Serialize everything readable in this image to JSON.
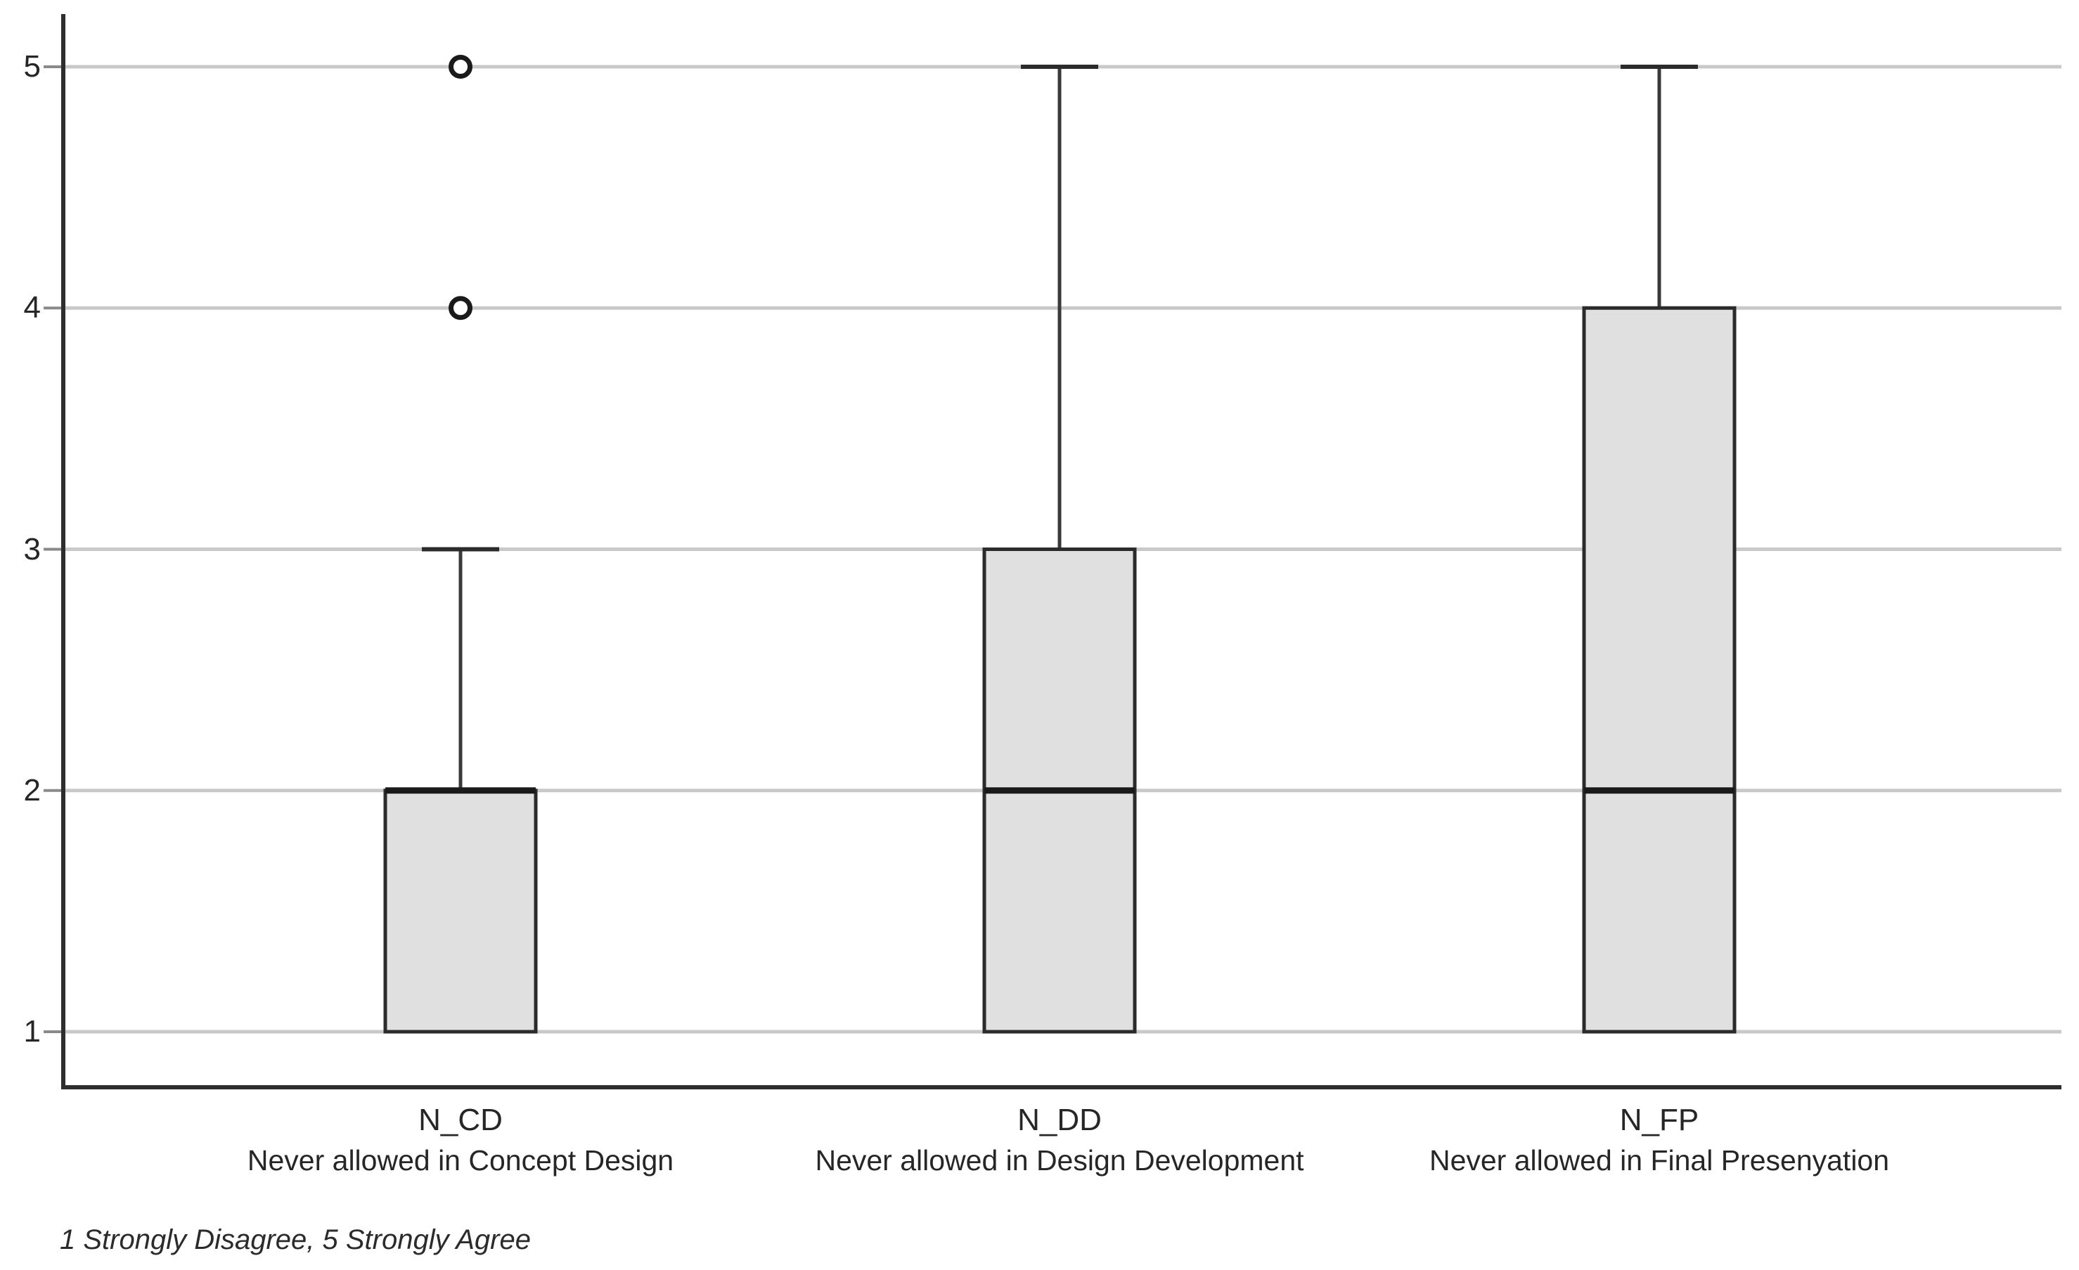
{
  "chart_data": {
    "type": "boxplot",
    "orientation": "vertical",
    "ylim": [
      1,
      5
    ],
    "yticks": [
      1,
      2,
      3,
      4,
      5
    ],
    "ytick_labels": [
      "5",
      "4",
      "3",
      "2",
      "1"
    ],
    "grid": "horizontal",
    "legend": "none",
    "categories": [
      {
        "code": "N_CD",
        "label": "Never allowed in Concept Design"
      },
      {
        "code": "N_DD",
        "label": "Never allowed in Design Development"
      },
      {
        "code": "N_FP",
        "label": "Never allowed in Final Presenyation"
      }
    ],
    "series": [
      {
        "name": "N_CD",
        "q1": 1,
        "median": 2,
        "q3": 2,
        "whisker_low": 1,
        "whisker_high": 3,
        "outliers": [
          4,
          5
        ]
      },
      {
        "name": "N_DD",
        "q1": 1,
        "median": 2,
        "q3": 3,
        "whisker_low": 1,
        "whisker_high": 5,
        "outliers": []
      },
      {
        "name": "N_FP",
        "q1": 1,
        "median": 2,
        "q3": 4,
        "whisker_low": 1,
        "whisker_high": 5,
        "outliers": []
      }
    ],
    "footnote": "1 Strongly Disagree, 5 Strongly Agree",
    "colors": {
      "background": "#ffffff",
      "box_fill": "#e0e0e0",
      "box_border": "#2b2b2b",
      "median": "#1a1a1a",
      "whisker": "#3a3a3a",
      "gridline": "#c9c9c9",
      "tick": "#8a8a8a",
      "axis": "#2e2e2e",
      "text": "#262626"
    }
  }
}
